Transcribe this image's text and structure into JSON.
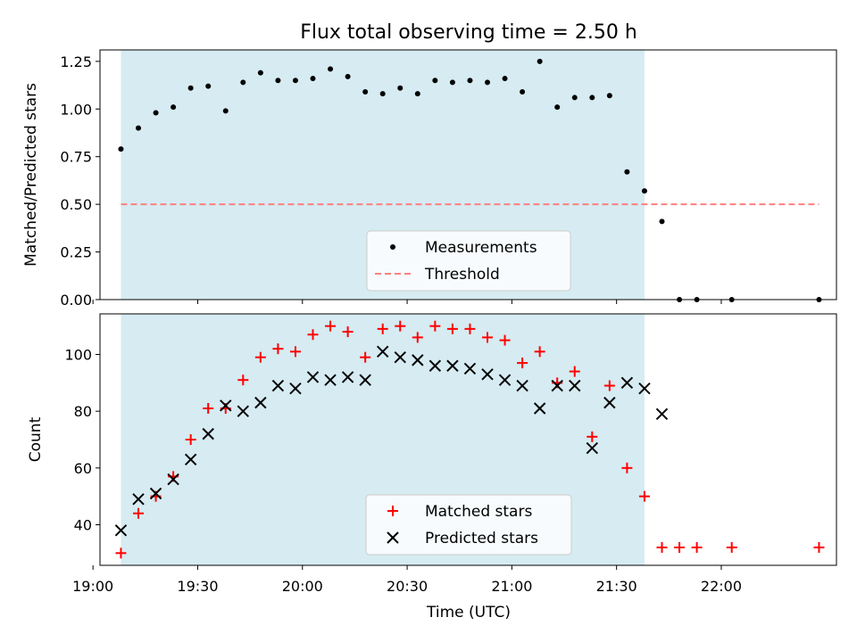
{
  "chart_data": [
    {
      "type": "scatter",
      "title": "Flux total observing time = 2.50 h",
      "ylabel": "Matched/Predicted stars",
      "xlabel": "",
      "x_unit": "time (UTC)",
      "xlim": [
        "19:02",
        "22:33"
      ],
      "ylim": [
        0,
        1.31
      ],
      "yticks": [
        "0.00",
        "0.25",
        "0.50",
        "0.75",
        "1.00",
        "1.25"
      ],
      "xticks": [
        "19:00",
        "19:30",
        "20:00",
        "20:30",
        "21:00",
        "21:30",
        "22:00"
      ],
      "shaded_interval": [
        "19:08",
        "21:38"
      ],
      "legend_position": "bottom-center",
      "colors": {
        "shade": "#add8e6",
        "measurements": "#000000",
        "threshold": "#ff7f7f"
      },
      "threshold": {
        "name": "Threshold",
        "y": 0.5,
        "x_range": [
          "19:08",
          "22:28"
        ]
      },
      "series": [
        {
          "name": "Measurements",
          "x": [
            "19:08",
            "19:13",
            "19:18",
            "19:23",
            "19:28",
            "19:33",
            "19:38",
            "19:43",
            "19:48",
            "19:53",
            "19:58",
            "20:03",
            "20:08",
            "20:13",
            "20:18",
            "20:23",
            "20:28",
            "20:33",
            "20:38",
            "20:43",
            "20:48",
            "20:53",
            "20:58",
            "21:03",
            "21:08",
            "21:13",
            "21:18",
            "21:23",
            "21:28",
            "21:33",
            "21:38",
            "21:43",
            "21:48",
            "21:53",
            "22:03",
            "22:28"
          ],
          "y": [
            0.79,
            0.9,
            0.98,
            1.01,
            1.11,
            1.12,
            0.99,
            1.14,
            1.19,
            1.15,
            1.15,
            1.16,
            1.21,
            1.17,
            1.09,
            1.08,
            1.11,
            1.08,
            1.15,
            1.14,
            1.15,
            1.14,
            1.16,
            1.09,
            1.25,
            1.01,
            1.06,
            1.06,
            1.07,
            0.67,
            0.57,
            0.41,
            0,
            0,
            0,
            0
          ]
        }
      ]
    },
    {
      "type": "scatter",
      "title": "",
      "ylabel": "Count",
      "xlabel": "Time (UTC)",
      "xlim": [
        "19:02",
        "22:33"
      ],
      "ylim": [
        25.7,
        114.3
      ],
      "yticks": [
        "40",
        "60",
        "80",
        "100"
      ],
      "xticks": [
        "19:00",
        "19:30",
        "20:00",
        "20:30",
        "21:00",
        "21:30",
        "22:00"
      ],
      "shaded_interval": [
        "19:08",
        "21:38"
      ],
      "legend_position": "bottom-center",
      "colors": {
        "matched": "#ff0000",
        "predicted": "#000000"
      },
      "series": [
        {
          "name": "Matched stars",
          "marker": "plus",
          "x": [
            "19:08",
            "19:13",
            "19:18",
            "19:23",
            "19:28",
            "19:33",
            "19:38",
            "19:43",
            "19:48",
            "19:53",
            "19:58",
            "20:03",
            "20:08",
            "20:13",
            "20:18",
            "20:23",
            "20:28",
            "20:33",
            "20:38",
            "20:43",
            "20:48",
            "20:53",
            "20:58",
            "21:03",
            "21:08",
            "21:13",
            "21:18",
            "21:23",
            "21:28",
            "21:33",
            "21:38",
            "21:43",
            "21:48",
            "21:53",
            "22:03",
            "22:28"
          ],
          "y": [
            30,
            44,
            50,
            57,
            70,
            81,
            81,
            91,
            99,
            102,
            101,
            107,
            110,
            108,
            99,
            109,
            110,
            106,
            110,
            109,
            109,
            106,
            105,
            97,
            101,
            90,
            94,
            71,
            89,
            60,
            50,
            32,
            32,
            32,
            32,
            32
          ]
        },
        {
          "name": "Predicted stars",
          "marker": "x",
          "x": [
            "19:08",
            "19:13",
            "19:18",
            "19:23",
            "19:28",
            "19:33",
            "19:38",
            "19:43",
            "19:48",
            "19:53",
            "19:58",
            "20:03",
            "20:08",
            "20:13",
            "20:18",
            "20:23",
            "20:28",
            "20:33",
            "20:38",
            "20:43",
            "20:48",
            "20:53",
            "20:58",
            "21:03",
            "21:08",
            "21:13",
            "21:18",
            "21:23",
            "21:28",
            "21:33",
            "21:38",
            "21:43"
          ],
          "y": [
            38,
            49,
            51,
            56,
            63,
            72,
            82,
            80,
            83,
            89,
            88,
            92,
            91,
            92,
            91,
            101,
            99,
            98,
            96,
            96,
            95,
            93,
            91,
            89,
            81,
            89,
            89,
            67,
            83,
            90,
            88,
            79
          ]
        }
      ]
    }
  ]
}
